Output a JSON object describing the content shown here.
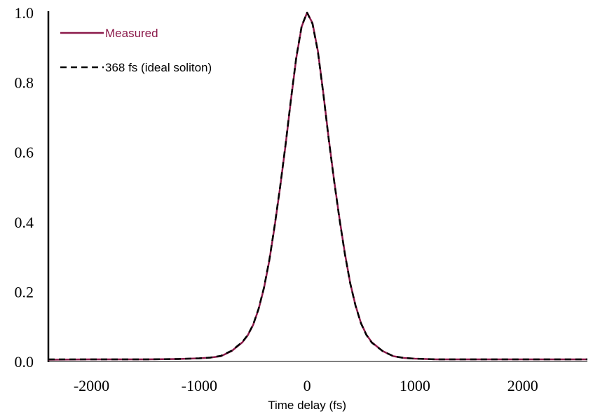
{
  "chart_data": {
    "type": "line",
    "title": "",
    "xlabel": "Time delay (fs)",
    "ylabel": "",
    "xlim": [
      -2400,
      2600
    ],
    "ylim": [
      0,
      1.0
    ],
    "xticks": [
      -2000,
      -1000,
      0,
      1000,
      2000
    ],
    "xtick_labels": [
      "-2000",
      "-1000",
      "0",
      "1000",
      "2000"
    ],
    "yticks": [
      0.0,
      0.2,
      0.4,
      0.6,
      0.8,
      1.0
    ],
    "ytick_labels": [
      "0.0",
      "0.2",
      "0.4",
      "0.6",
      "0.8",
      "1.0"
    ],
    "grid": false,
    "legend_position": "top-left",
    "series": [
      {
        "name": "Measured",
        "color": "#8b1a4a",
        "style": "solid",
        "x": [
          -2400,
          -2000,
          -1500,
          -1200,
          -1000,
          -900,
          -800,
          -700,
          -600,
          -550,
          -500,
          -450,
          -400,
          -350,
          -300,
          -250,
          -200,
          -150,
          -100,
          -50,
          0,
          50,
          100,
          150,
          200,
          250,
          300,
          350,
          400,
          450,
          500,
          550,
          600,
          700,
          800,
          900,
          1000,
          1200,
          1500,
          2000,
          2600
        ],
        "y": [
          0.005,
          0.006,
          0.006,
          0.007,
          0.009,
          0.011,
          0.015,
          0.03,
          0.055,
          0.075,
          0.105,
          0.15,
          0.21,
          0.29,
          0.39,
          0.5,
          0.62,
          0.75,
          0.87,
          0.96,
          1.0,
          0.97,
          0.89,
          0.77,
          0.64,
          0.52,
          0.41,
          0.31,
          0.225,
          0.16,
          0.11,
          0.077,
          0.055,
          0.03,
          0.015,
          0.01,
          0.008,
          0.006,
          0.006,
          0.006,
          0.006
        ]
      },
      {
        "name": "368 fs (ideal soliton)",
        "color": "#000000",
        "style": "dashed",
        "x": [
          -2400,
          -2000,
          -1500,
          -1200,
          -1000,
          -900,
          -800,
          -700,
          -600,
          -550,
          -500,
          -450,
          -400,
          -350,
          -300,
          -250,
          -200,
          -150,
          -100,
          -50,
          0,
          50,
          100,
          150,
          200,
          250,
          300,
          350,
          400,
          450,
          500,
          550,
          600,
          700,
          800,
          900,
          1000,
          1200,
          1500,
          2000,
          2600
        ],
        "y": [
          0.006,
          0.006,
          0.006,
          0.007,
          0.009,
          0.011,
          0.016,
          0.031,
          0.056,
          0.076,
          0.106,
          0.151,
          0.212,
          0.292,
          0.392,
          0.502,
          0.622,
          0.752,
          0.872,
          0.962,
          1.0,
          0.968,
          0.888,
          0.768,
          0.638,
          0.518,
          0.408,
          0.308,
          0.224,
          0.159,
          0.109,
          0.076,
          0.054,
          0.03,
          0.015,
          0.01,
          0.008,
          0.006,
          0.006,
          0.006,
          0.006
        ]
      }
    ]
  }
}
